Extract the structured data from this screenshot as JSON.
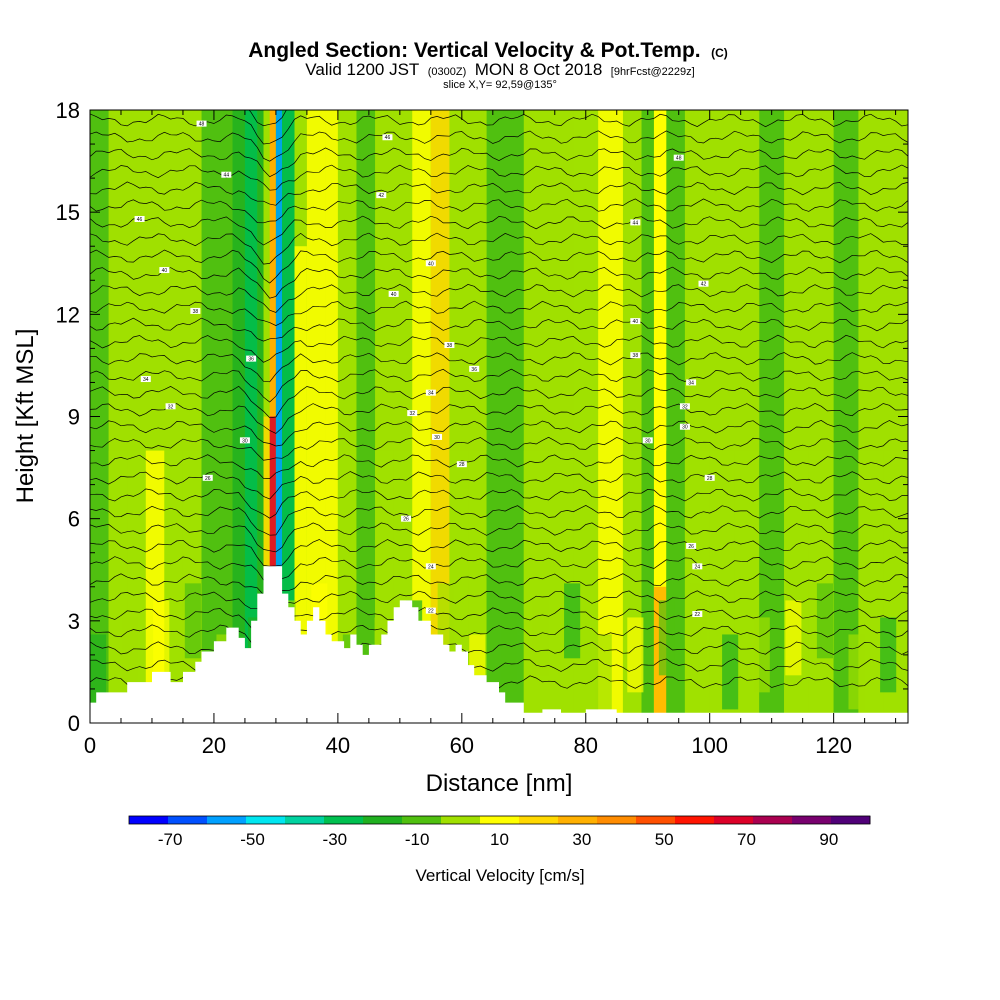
{
  "header": {
    "title_main": "Angled Section: Vertical Velocity & Pot.Temp.",
    "title_unit": "(C)",
    "valid_part1": "Valid 1200 JST",
    "valid_small1": "(0300Z)",
    "valid_part2": "MON 8 Oct 2018",
    "valid_small2": "[9hrFcst@2229z]",
    "slice": "slice X,Y= 92,59@135°"
  },
  "chart_data": {
    "type": "heatmap",
    "xlabel": "Distance [nm]",
    "ylabel": "Height [Kft MSL]",
    "xlim": [
      0,
      132
    ],
    "ylim": [
      0,
      18
    ],
    "x_ticks": [
      0,
      20,
      40,
      60,
      80,
      100,
      120
    ],
    "y_ticks": [
      0,
      3,
      6,
      9,
      12,
      15,
      18
    ],
    "grid": false,
    "colorbar": {
      "title": "Vertical Velocity [cm/s]",
      "placement": "bottom",
      "range": [
        -80,
        100
      ],
      "step": 10,
      "tick_labels": [
        "-70",
        "-50",
        "-30",
        "-10",
        "10",
        "30",
        "50",
        "70",
        "90"
      ],
      "colors": [
        "#0000ff",
        "#0050ff",
        "#00a0ff",
        "#00e6f0",
        "#00d2a0",
        "#00c050",
        "#20b020",
        "#50c010",
        "#a0e000",
        "#ffff00",
        "#ffd800",
        "#ffb000",
        "#ff8c00",
        "#ff5000",
        "#ff1400",
        "#dc0028",
        "#aa0050",
        "#78006e",
        "#500078"
      ]
    },
    "field_columns": {
      "x": [
        0,
        3,
        6,
        9,
        12,
        15,
        18,
        21,
        23,
        25,
        27,
        28,
        29,
        30,
        31,
        33,
        35,
        38,
        40,
        43,
        46,
        49,
        52,
        55,
        58,
        61,
        64,
        67,
        70,
        74,
        78,
        82,
        86,
        89,
        91,
        93,
        96,
        100,
        104,
        108,
        112,
        116,
        120,
        124,
        128,
        132
      ],
      "value": [
        -5,
        2,
        8,
        12,
        5,
        0,
        -3,
        -8,
        -20,
        -30,
        -15,
        20,
        70,
        -60,
        -30,
        10,
        15,
        18,
        8,
        -2,
        2,
        5,
        15,
        20,
        8,
        0,
        -5,
        -3,
        2,
        0,
        8,
        12,
        3,
        -5,
        30,
        -5,
        2,
        6,
        3,
        -3,
        2,
        5,
        -2,
        3,
        6,
        -2
      ],
      "band_top": [
        8,
        8,
        8,
        8,
        8,
        8,
        8,
        8,
        18,
        18,
        18,
        9,
        9,
        18,
        18,
        14,
        18,
        18,
        8,
        8,
        8,
        8,
        18,
        18,
        8,
        8,
        8,
        8,
        8,
        8,
        18,
        18,
        8,
        8,
        4,
        8,
        8,
        8,
        8,
        8,
        8,
        8,
        8,
        8,
        8,
        8
      ]
    },
    "terrain": [
      [
        0,
        0.6
      ],
      [
        1,
        0.9
      ],
      [
        5,
        0.9
      ],
      [
        6,
        1.2
      ],
      [
        10,
        1.5
      ],
      [
        13,
        1.2
      ],
      [
        15,
        1.5
      ],
      [
        17,
        1.8
      ],
      [
        18,
        2.1
      ],
      [
        20,
        2.4
      ],
      [
        22,
        2.8
      ],
      [
        24,
        2.5
      ],
      [
        25,
        2.2
      ],
      [
        26,
        3.0
      ],
      [
        27,
        3.8
      ],
      [
        28,
        4.6
      ],
      [
        30,
        4.6
      ],
      [
        31,
        3.8
      ],
      [
        32,
        3.4
      ],
      [
        33,
        3.0
      ],
      [
        34,
        2.6
      ],
      [
        35,
        3.0
      ],
      [
        36,
        3.4
      ],
      [
        37,
        3.0
      ],
      [
        38,
        2.6
      ],
      [
        39,
        2.4
      ],
      [
        40,
        2.4
      ],
      [
        41,
        2.2
      ],
      [
        42,
        2.6
      ],
      [
        43,
        2.3
      ],
      [
        44,
        2.0
      ],
      [
        45,
        2.3
      ],
      [
        47,
        2.6
      ],
      [
        48,
        3.0
      ],
      [
        49,
        3.4
      ],
      [
        50,
        3.6
      ],
      [
        52,
        3.4
      ],
      [
        53,
        3.0
      ],
      [
        55,
        2.6
      ],
      [
        57,
        2.3
      ],
      [
        58,
        2.1
      ],
      [
        59,
        2.3
      ],
      [
        60,
        2.1
      ],
      [
        61,
        1.7
      ],
      [
        62,
        1.4
      ],
      [
        64,
        1.2
      ],
      [
        66,
        0.9
      ],
      [
        67,
        0.6
      ],
      [
        70,
        0.3
      ],
      [
        73,
        0.4
      ],
      [
        76,
        0.3
      ],
      [
        80,
        0.4
      ],
      [
        85,
        0.3
      ],
      [
        90,
        0.3
      ],
      [
        95,
        0.3
      ],
      [
        100,
        0.3
      ],
      [
        108,
        0.3
      ],
      [
        115,
        0.3
      ],
      [
        125,
        0.3
      ],
      [
        130,
        0.3
      ],
      [
        132,
        0
      ]
    ],
    "contour_labels": [
      {
        "x": 18,
        "y": 17.6,
        "text": "48"
      },
      {
        "x": 48,
        "y": 17.2,
        "text": "46"
      },
      {
        "x": 22,
        "y": 16.1,
        "text": "44"
      },
      {
        "x": 47,
        "y": 15.5,
        "text": "42"
      },
      {
        "x": 95,
        "y": 16.6,
        "text": "48"
      },
      {
        "x": 8,
        "y": 14.8,
        "text": "46"
      },
      {
        "x": 88,
        "y": 14.7,
        "text": "44"
      },
      {
        "x": 12,
        "y": 13.3,
        "text": "40"
      },
      {
        "x": 55,
        "y": 13.5,
        "text": "40"
      },
      {
        "x": 49,
        "y": 12.6,
        "text": "40"
      },
      {
        "x": 99,
        "y": 12.9,
        "text": "42"
      },
      {
        "x": 17,
        "y": 12.1,
        "text": "38"
      },
      {
        "x": 88,
        "y": 11.8,
        "text": "40"
      },
      {
        "x": 58,
        "y": 11.1,
        "text": "38"
      },
      {
        "x": 88,
        "y": 10.8,
        "text": "38"
      },
      {
        "x": 26,
        "y": 10.7,
        "text": "36"
      },
      {
        "x": 62,
        "y": 10.4,
        "text": "36"
      },
      {
        "x": 9,
        "y": 10.1,
        "text": "34"
      },
      {
        "x": 97,
        "y": 10.0,
        "text": "34"
      },
      {
        "x": 55,
        "y": 9.7,
        "text": "34"
      },
      {
        "x": 13,
        "y": 9.3,
        "text": "32"
      },
      {
        "x": 96,
        "y": 9.3,
        "text": "32"
      },
      {
        "x": 52,
        "y": 9.1,
        "text": "32"
      },
      {
        "x": 96,
        "y": 8.7,
        "text": "30"
      },
      {
        "x": 56,
        "y": 8.4,
        "text": "30"
      },
      {
        "x": 25,
        "y": 8.3,
        "text": "30"
      },
      {
        "x": 90,
        "y": 8.3,
        "text": "30"
      },
      {
        "x": 60,
        "y": 7.6,
        "text": "28"
      },
      {
        "x": 19,
        "y": 7.2,
        "text": "26"
      },
      {
        "x": 100,
        "y": 7.2,
        "text": "28"
      },
      {
        "x": 51,
        "y": 6.0,
        "text": "26"
      },
      {
        "x": 97,
        "y": 5.2,
        "text": "26"
      },
      {
        "x": 55,
        "y": 4.6,
        "text": "24"
      },
      {
        "x": 98,
        "y": 4.6,
        "text": "24"
      },
      {
        "x": 55,
        "y": 3.3,
        "text": "22"
      },
      {
        "x": 98,
        "y": 3.2,
        "text": "22"
      }
    ]
  }
}
